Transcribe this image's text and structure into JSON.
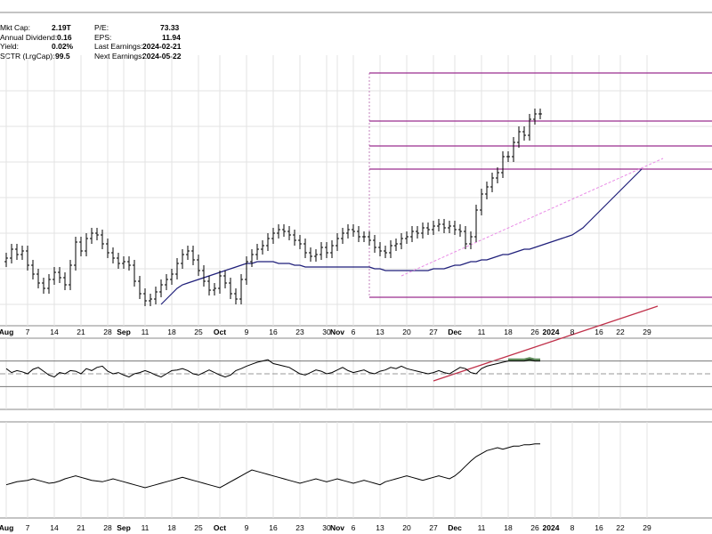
{
  "info_left": [
    {
      "label": "Mkt Cap:",
      "value": "2.19T"
    },
    {
      "label": "Annual Dividend:",
      "value": "0.16"
    },
    {
      "label": "Yield:",
      "value": "0.02%"
    },
    {
      "label": "SCTR (LrgCap):",
      "value": "99.5"
    }
  ],
  "info_right": [
    {
      "label": "P/E:",
      "value": "73.33"
    },
    {
      "label": "EPS:",
      "value": "11.94"
    },
    {
      "label": "Last Earnings:",
      "value": "2024-02-21"
    },
    {
      "label": "Next Earnings:",
      "value": "2024-05-22"
    }
  ],
  "colors": {
    "price_bar": "#000000",
    "moving_average_short": "#1f1f7a",
    "moving_average_long": "#c0304a",
    "trendline": "#e98be6",
    "fib_lines": "#9b2d8f",
    "oscillator": "#000000",
    "oscillator_fill": "#5e8a5a",
    "grid": "#e3e3e3"
  },
  "chart_data": {
    "type": "candlestick",
    "period": "daily",
    "x_ticks": [
      {
        "label": "Aug",
        "bold": true
      },
      {
        "label": "7"
      },
      {
        "label": "14"
      },
      {
        "label": "21"
      },
      {
        "label": "28"
      },
      {
        "label": "Sep",
        "bold": true
      },
      {
        "label": "11"
      },
      {
        "label": "18"
      },
      {
        "label": "25"
      },
      {
        "label": "Oct",
        "bold": true
      },
      {
        "label": "9"
      },
      {
        "label": "16"
      },
      {
        "label": "23"
      },
      {
        "label": "30"
      },
      {
        "label": "Nov",
        "bold": true
      },
      {
        "label": "6"
      },
      {
        "label": "13"
      },
      {
        "label": "20"
      },
      {
        "label": "27"
      },
      {
        "label": "Dec",
        "bold": true
      },
      {
        "label": "11"
      },
      {
        "label": "18"
      },
      {
        "label": "26"
      },
      {
        "label": "2024",
        "bold": true
      },
      {
        "label": "8"
      },
      {
        "label": "16"
      },
      {
        "label": "22"
      },
      {
        "label": "29"
      }
    ],
    "tick_days": [
      0,
      4,
      9,
      14,
      19,
      22,
      26,
      31,
      36,
      40,
      45,
      50,
      55,
      60,
      62,
      65,
      70,
      75,
      80,
      84,
      89,
      94,
      99,
      102,
      106,
      111,
      115,
      120
    ],
    "price_closes": [
      316,
      321,
      318,
      320,
      312,
      307,
      302,
      299,
      304,
      308,
      305,
      301,
      312,
      325,
      320,
      327,
      330,
      329,
      324,
      319,
      316,
      313,
      314,
      312,
      303,
      296,
      292,
      293,
      297,
      301,
      304,
      307,
      313,
      318,
      320,
      315,
      309,
      303,
      298,
      299,
      306,
      302,
      296,
      293,
      304,
      314,
      318,
      321,
      323,
      327,
      330,
      332,
      331,
      329,
      326,
      324,
      319,
      317,
      318,
      322,
      319,
      323,
      327,
      330,
      332,
      331,
      328,
      328,
      326,
      322,
      320,
      319,
      323,
      324,
      327,
      328,
      331,
      330,
      333,
      332,
      334,
      335,
      333,
      334,
      332,
      331,
      324,
      328,
      343,
      352,
      356,
      361,
      364,
      373,
      373,
      381,
      387,
      385,
      394,
      397,
      397
    ],
    "ma_short": [
      290,
      293,
      296,
      299,
      301,
      302,
      303,
      304,
      305,
      306,
      307,
      308,
      309,
      310,
      311,
      312,
      313,
      313,
      314,
      314,
      314,
      314,
      313,
      313,
      313,
      312,
      312,
      311,
      311,
      311,
      311,
      311,
      311,
      311,
      311,
      311,
      311,
      311,
      311,
      311,
      310,
      310,
      309,
      309,
      309,
      309,
      309,
      309,
      309,
      309,
      309,
      310,
      310,
      310,
      311,
      312,
      312,
      313,
      314,
      314,
      315,
      315,
      316,
      317,
      318,
      318,
      319,
      320,
      321,
      321,
      322,
      323,
      324,
      325,
      326,
      327,
      328,
      329,
      331,
      333,
      336,
      339,
      342,
      345,
      348,
      351,
      354,
      357,
      360,
      363,
      366
    ],
    "ma_long": [
      247,
      248,
      249,
      250,
      251,
      252,
      253,
      254,
      255,
      256,
      257,
      258,
      259,
      260,
      261,
      262,
      263,
      264,
      265,
      266,
      267,
      268,
      269,
      270,
      271,
      272,
      273,
      274,
      275,
      276,
      277,
      278,
      279,
      280,
      281,
      282,
      283,
      284,
      285,
      286,
      287,
      288,
      289
    ],
    "trendline": {
      "from_day": 74,
      "to_day": 123,
      "from": 306,
      "to": 372
    },
    "fib_levels": [
      420,
      393,
      379,
      366,
      294
    ],
    "osc_values": [
      58,
      52,
      55,
      53,
      50,
      57,
      60,
      54,
      48,
      45,
      52,
      50,
      55,
      54,
      50,
      58,
      55,
      60,
      62,
      54,
      50,
      52,
      48,
      45,
      50,
      52,
      55,
      52,
      48,
      45,
      50,
      55,
      56,
      58,
      55,
      50,
      48,
      52,
      56,
      52,
      48,
      45,
      48,
      55,
      58,
      62,
      65,
      68,
      70,
      72,
      66,
      64,
      62,
      60,
      55,
      50,
      48,
      52,
      56,
      54,
      50,
      52,
      56,
      60,
      55,
      52,
      54,
      56,
      52,
      50,
      54,
      56,
      60,
      58,
      62,
      58,
      56,
      54,
      52,
      50,
      52,
      55,
      52,
      50,
      55,
      60,
      58,
      52,
      50,
      58,
      62,
      64,
      66,
      68,
      70,
      70,
      70,
      70,
      72,
      70,
      70
    ],
    "osc_range": [
      0,
      100
    ],
    "osc_band": [
      70,
      30
    ],
    "osc_mid": 50,
    "lower_values": [
      40,
      42,
      44,
      45,
      46,
      48,
      46,
      44,
      42,
      43,
      45,
      48,
      50,
      52,
      50,
      48,
      46,
      45,
      44,
      46,
      48,
      46,
      44,
      42,
      40,
      38,
      36,
      38,
      40,
      42,
      44,
      46,
      48,
      50,
      48,
      46,
      44,
      42,
      40,
      38,
      36,
      40,
      44,
      48,
      52,
      56,
      60,
      58,
      56,
      54,
      52,
      50,
      48,
      46,
      44,
      42,
      44,
      46,
      48,
      46,
      44,
      46,
      48,
      46,
      44,
      42,
      44,
      46,
      44,
      42,
      40,
      44,
      46,
      48,
      50,
      52,
      50,
      48,
      46,
      48,
      50,
      52,
      50,
      48,
      52,
      58,
      65,
      72,
      78,
      82,
      86,
      88,
      90,
      88,
      90,
      92,
      92,
      94,
      94,
      95,
      95
    ],
    "lower_range": [
      0,
      120
    ],
    "price_range": [
      280,
      430
    ]
  }
}
